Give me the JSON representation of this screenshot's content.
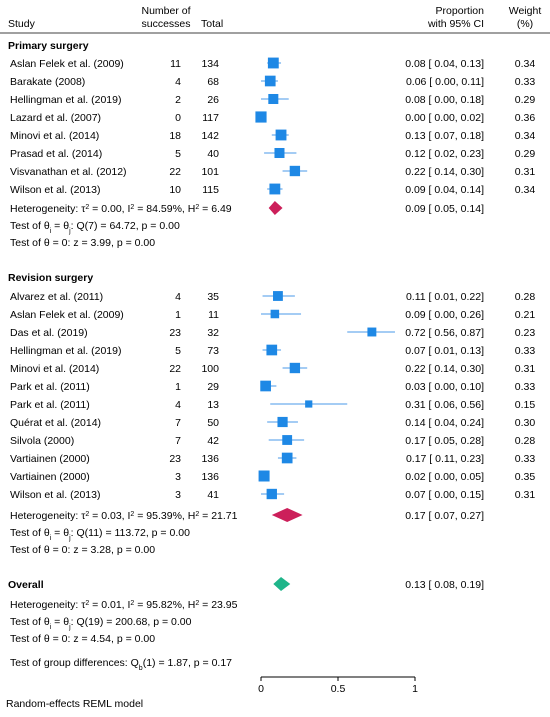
{
  "chart_data": {
    "type": "forest",
    "columns": {
      "study": "Study",
      "successes": [
        "Number of",
        "successes"
      ],
      "total": "Total",
      "ci": [
        "Proportion",
        "with 95% CI"
      ],
      "weight": [
        "Weight",
        "(%)"
      ]
    },
    "xaxis": {
      "range": [
        0,
        1
      ],
      "ticks": [
        0,
        0.5,
        1
      ],
      "tick_labels": [
        "0",
        "0.5",
        "1"
      ]
    },
    "groups": [
      {
        "name": "Primary surgery",
        "studies": [
          {
            "study": "Aslan Felek et al. (2009)",
            "successes": "11",
            "total": "134",
            "est": 0.08,
            "lo": 0.04,
            "hi": 0.13,
            "ci_text": "0.08 [ 0.04, 0.13]",
            "weight": 0.34,
            "weight_text": "0.34"
          },
          {
            "study": "Barakate (2008)",
            "successes": "4",
            "total": "68",
            "est": 0.06,
            "lo": 0.0,
            "hi": 0.11,
            "ci_text": "0.06 [ 0.00, 0.11]",
            "weight": 0.33,
            "weight_text": "0.33"
          },
          {
            "study": "Hellingman et al. (2019)",
            "successes": "2",
            "total": "26",
            "est": 0.08,
            "lo": 0.0,
            "hi": 0.18,
            "ci_text": "0.08 [ 0.00, 0.18]",
            "weight": 0.29,
            "weight_text": "0.29"
          },
          {
            "study": "Lazard et al. (2007)",
            "successes": "0",
            "total": "117",
            "est": 0.0,
            "lo": 0.0,
            "hi": 0.02,
            "ci_text": "0.00 [ 0.00, 0.02]",
            "weight": 0.36,
            "weight_text": "0.36"
          },
          {
            "study": "Minovi et al. (2014)",
            "successes": "18",
            "total": "142",
            "est": 0.13,
            "lo": 0.07,
            "hi": 0.18,
            "ci_text": "0.13 [ 0.07, 0.18]",
            "weight": 0.34,
            "weight_text": "0.34"
          },
          {
            "study": "Prasad et al. (2014)",
            "successes": "5",
            "total": "40",
            "est": 0.12,
            "lo": 0.02,
            "hi": 0.23,
            "ci_text": "0.12 [ 0.02, 0.23]",
            "weight": 0.29,
            "weight_text": "0.29"
          },
          {
            "study": "Visvanathan et al. (2012)",
            "successes": "22",
            "total": "101",
            "est": 0.22,
            "lo": 0.14,
            "hi": 0.3,
            "ci_text": "0.22 [ 0.14, 0.30]",
            "weight": 0.31,
            "weight_text": "0.31"
          },
          {
            "study": "Wilson et al. (2013)",
            "successes": "10",
            "total": "115",
            "est": 0.09,
            "lo": 0.04,
            "hi": 0.14,
            "ci_text": "0.09 [ 0.04, 0.14]",
            "weight": 0.34,
            "weight_text": "0.34"
          }
        ],
        "pooled": {
          "est": 0.09,
          "lo": 0.05,
          "hi": 0.14,
          "ci_text": "0.09 [ 0.05, 0.14]"
        },
        "stats": {
          "heterogeneity_prefix": "Heterogeneity: τ",
          "tau2": "2",
          "heterogeneity_mid": " = 0.00, I",
          "i2": "2",
          "heterogeneity_mid2": " = 84.59%, H",
          "h2": "2",
          "heterogeneity_suffix": " = 6.49",
          "test_theta_i_prefix": "Test of θ",
          "test_sub_i": "i",
          "test_theta_i_mid": " = θ",
          "test_sub_j": "j",
          "test_theta_i_suffix": ": Q(7) = 64.72, p = 0.00",
          "test_theta0": "Test of θ = 0: z = 3.99, p = 0.00"
        }
      },
      {
        "name": "Revision surgery",
        "studies": [
          {
            "study": "Alvarez et al. (2011)",
            "successes": "4",
            "total": "35",
            "est": 0.11,
            "lo": 0.01,
            "hi": 0.22,
            "ci_text": "0.11 [ 0.01, 0.22]",
            "weight": 0.28,
            "weight_text": "0.28"
          },
          {
            "study": "Aslan Felek et al. (2009)",
            "successes": "1",
            "total": "11",
            "est": 0.09,
            "lo": 0.0,
            "hi": 0.26,
            "ci_text": "0.09 [ 0.00, 0.26]",
            "weight": 0.21,
            "weight_text": "0.21"
          },
          {
            "study": "Das et al. (2019)",
            "successes": "23",
            "total": "32",
            "est": 0.72,
            "lo": 0.56,
            "hi": 0.87,
            "ci_text": "0.72 [ 0.56, 0.87]",
            "weight": 0.23,
            "weight_text": "0.23"
          },
          {
            "study": "Hellingman et al. (2019)",
            "successes": "5",
            "total": "73",
            "est": 0.07,
            "lo": 0.01,
            "hi": 0.13,
            "ci_text": "0.07 [ 0.01, 0.13]",
            "weight": 0.33,
            "weight_text": "0.33"
          },
          {
            "study": "Minovi et al. (2014)",
            "successes": "22",
            "total": "100",
            "est": 0.22,
            "lo": 0.14,
            "hi": 0.3,
            "ci_text": "0.22 [ 0.14, 0.30]",
            "weight": 0.31,
            "weight_text": "0.31"
          },
          {
            "study": "Park et al. (2011)",
            "successes": "1",
            "total": "29",
            "est": 0.03,
            "lo": 0.0,
            "hi": 0.1,
            "ci_text": "0.03 [ 0.00, 0.10]",
            "weight": 0.33,
            "weight_text": "0.33"
          },
          {
            "study": "Park et al. (2011)",
            "successes": "4",
            "total": "13",
            "est": 0.31,
            "lo": 0.06,
            "hi": 0.56,
            "ci_text": "0.31 [ 0.06, 0.56]",
            "weight": 0.15,
            "weight_text": "0.15"
          },
          {
            "study": "Quérat et al. (2014)",
            "successes": "7",
            "total": "50",
            "est": 0.14,
            "lo": 0.04,
            "hi": 0.24,
            "ci_text": "0.14 [ 0.04, 0.24]",
            "weight": 0.3,
            "weight_text": "0.30"
          },
          {
            "study": "Silvola (2000)",
            "successes": "7",
            "total": "42",
            "est": 0.17,
            "lo": 0.05,
            "hi": 0.28,
            "ci_text": "0.17 [ 0.05, 0.28]",
            "weight": 0.28,
            "weight_text": "0.28"
          },
          {
            "study": "Vartiainen (2000)",
            "successes": "23",
            "total": "136",
            "est": 0.17,
            "lo": 0.11,
            "hi": 0.23,
            "ci_text": "0.17 [ 0.11, 0.23]",
            "weight": 0.33,
            "weight_text": "0.33"
          },
          {
            "study": "Vartiainen (2000)",
            "successes": "3",
            "total": "136",
            "est": 0.02,
            "lo": 0.0,
            "hi": 0.05,
            "ci_text": "0.02 [ 0.00, 0.05]",
            "weight": 0.35,
            "weight_text": "0.35"
          },
          {
            "study": "Wilson et al. (2013)",
            "successes": "3",
            "total": "41",
            "est": 0.07,
            "lo": 0.0,
            "hi": 0.15,
            "ci_text": "0.07 [ 0.00, 0.15]",
            "weight": 0.31,
            "weight_text": "0.31"
          }
        ],
        "pooled": {
          "est": 0.17,
          "lo": 0.07,
          "hi": 0.27,
          "ci_text": "0.17 [ 0.07, 0.27]"
        },
        "stats": {
          "heterogeneity_prefix": "Heterogeneity: τ",
          "tau2": "2",
          "heterogeneity_mid": " = 0.03, I",
          "i2": "2",
          "heterogeneity_mid2": " = 95.39%, H",
          "h2": "2",
          "heterogeneity_suffix": " = 21.71",
          "test_theta_i_prefix": "Test of θ",
          "test_sub_i": "i",
          "test_theta_i_mid": " = θ",
          "test_sub_j": "j",
          "test_theta_i_suffix": ": Q(11) = 113.72, p = 0.00",
          "test_theta0": "Test of θ = 0: z = 3.28, p = 0.00"
        }
      }
    ],
    "overall": {
      "name": "Overall",
      "pooled": {
        "est": 0.13,
        "lo": 0.08,
        "hi": 0.19,
        "ci_text": "0.13 [ 0.08, 0.19]"
      },
      "stats": {
        "heterogeneity_prefix": "Heterogeneity: τ",
        "tau2": "2",
        "heterogeneity_mid": " = 0.01, I",
        "i2": "2",
        "heterogeneity_mid2": " = 95.82%, H",
        "h2": "2",
        "heterogeneity_suffix": " = 23.95",
        "test_theta_i_prefix": "Test of θ",
        "test_sub_i": "i",
        "test_theta_i_mid": " = θ",
        "test_sub_j": "j",
        "test_theta_i_suffix": ": Q(19) = 200.68, p = 0.00",
        "test_theta0": "Test of θ = 0: z = 4.54, p = 0.00"
      }
    },
    "group_diff": {
      "prefix": "Test of group differences: Q",
      "sub": "b",
      "suffix": "(1) = 1.87, p = 0.17"
    },
    "footnote": "Random-effects REML model",
    "colors": {
      "study_marker": "#1e88e5",
      "ci_line": "#4a9ae8",
      "subgroup_diamond": "#cc1f5a",
      "overall_diamond": "#1fb58a"
    }
  }
}
